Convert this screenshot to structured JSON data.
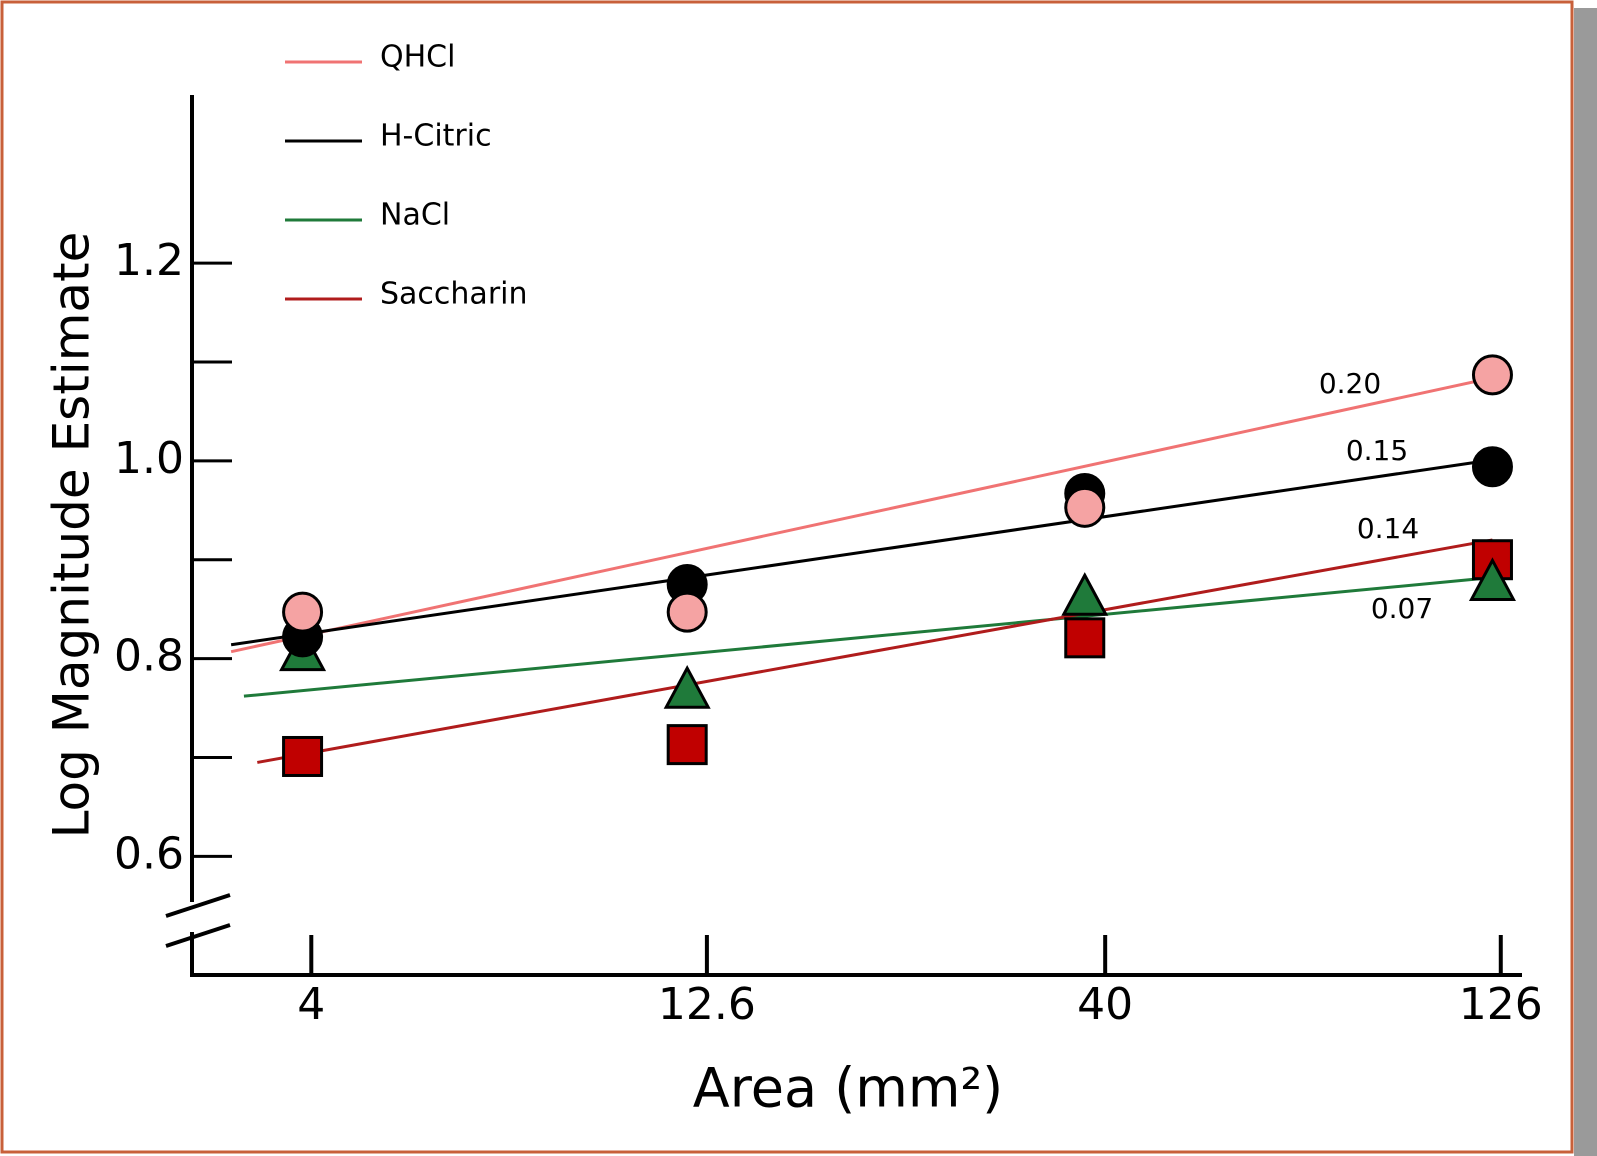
{
  "chart_data": {
    "type": "scatter",
    "xlabel": "Area (mm²)",
    "ylabel": "Log Magnitude Estimate",
    "xscale": "log",
    "xlim": [
      2.83,
      134
    ],
    "xticks": [
      4,
      12.6,
      40,
      126
    ],
    "ylim": [
      0.48,
      1.37
    ],
    "yticks": [
      0.6,
      0.8,
      {
        "value": 1,
        "label": "1.0"
      },
      1.2
    ],
    "yminor_ticks": [
      0.7,
      0.9,
      1.1
    ],
    "legend": "upper left",
    "x": [
      3.9,
      11.9,
      37.7,
      123
    ],
    "series": [
      {
        "name": "QHCl",
        "color": "#f07373",
        "marker_color": "#f5a3a3",
        "marker": "circle",
        "values": [
          0.847,
          0.847,
          0.953,
          1.087
        ],
        "fit": {
          "x": [
            3.17,
            123
          ],
          "values": [
            0.807,
            1.084
          ]
        },
        "annotation": "0.20"
      },
      {
        "name": "H-Citric",
        "color": "#000000",
        "marker_color": "#000000",
        "marker": "circle",
        "values": [
          0.822,
          0.875,
          0.967,
          0.994
        ],
        "fit": {
          "x": [
            3.17,
            123
          ],
          "values": [
            0.814,
            1.001
          ]
        },
        "annotation": "0.15"
      },
      {
        "name": "NaCl",
        "color": "#1f7a3a",
        "marker_color": "#1f7a3a",
        "marker": "triangle",
        "values": [
          0.804,
          0.766,
          0.86,
          0.875
        ],
        "fit": {
          "x": [
            3.29,
            123
          ],
          "values": [
            0.762,
            0.882
          ]
        },
        "annotation": "0.07"
      },
      {
        "name": "Saccharin",
        "color": "#b01c1c",
        "marker_color": "#c00000",
        "marker": "square",
        "values": [
          0.701,
          0.713,
          0.821,
          0.9
        ],
        "fit": {
          "x": [
            3.42,
            123
          ],
          "values": [
            0.695,
            0.92
          ]
        },
        "annotation": "0.14"
      }
    ]
  }
}
